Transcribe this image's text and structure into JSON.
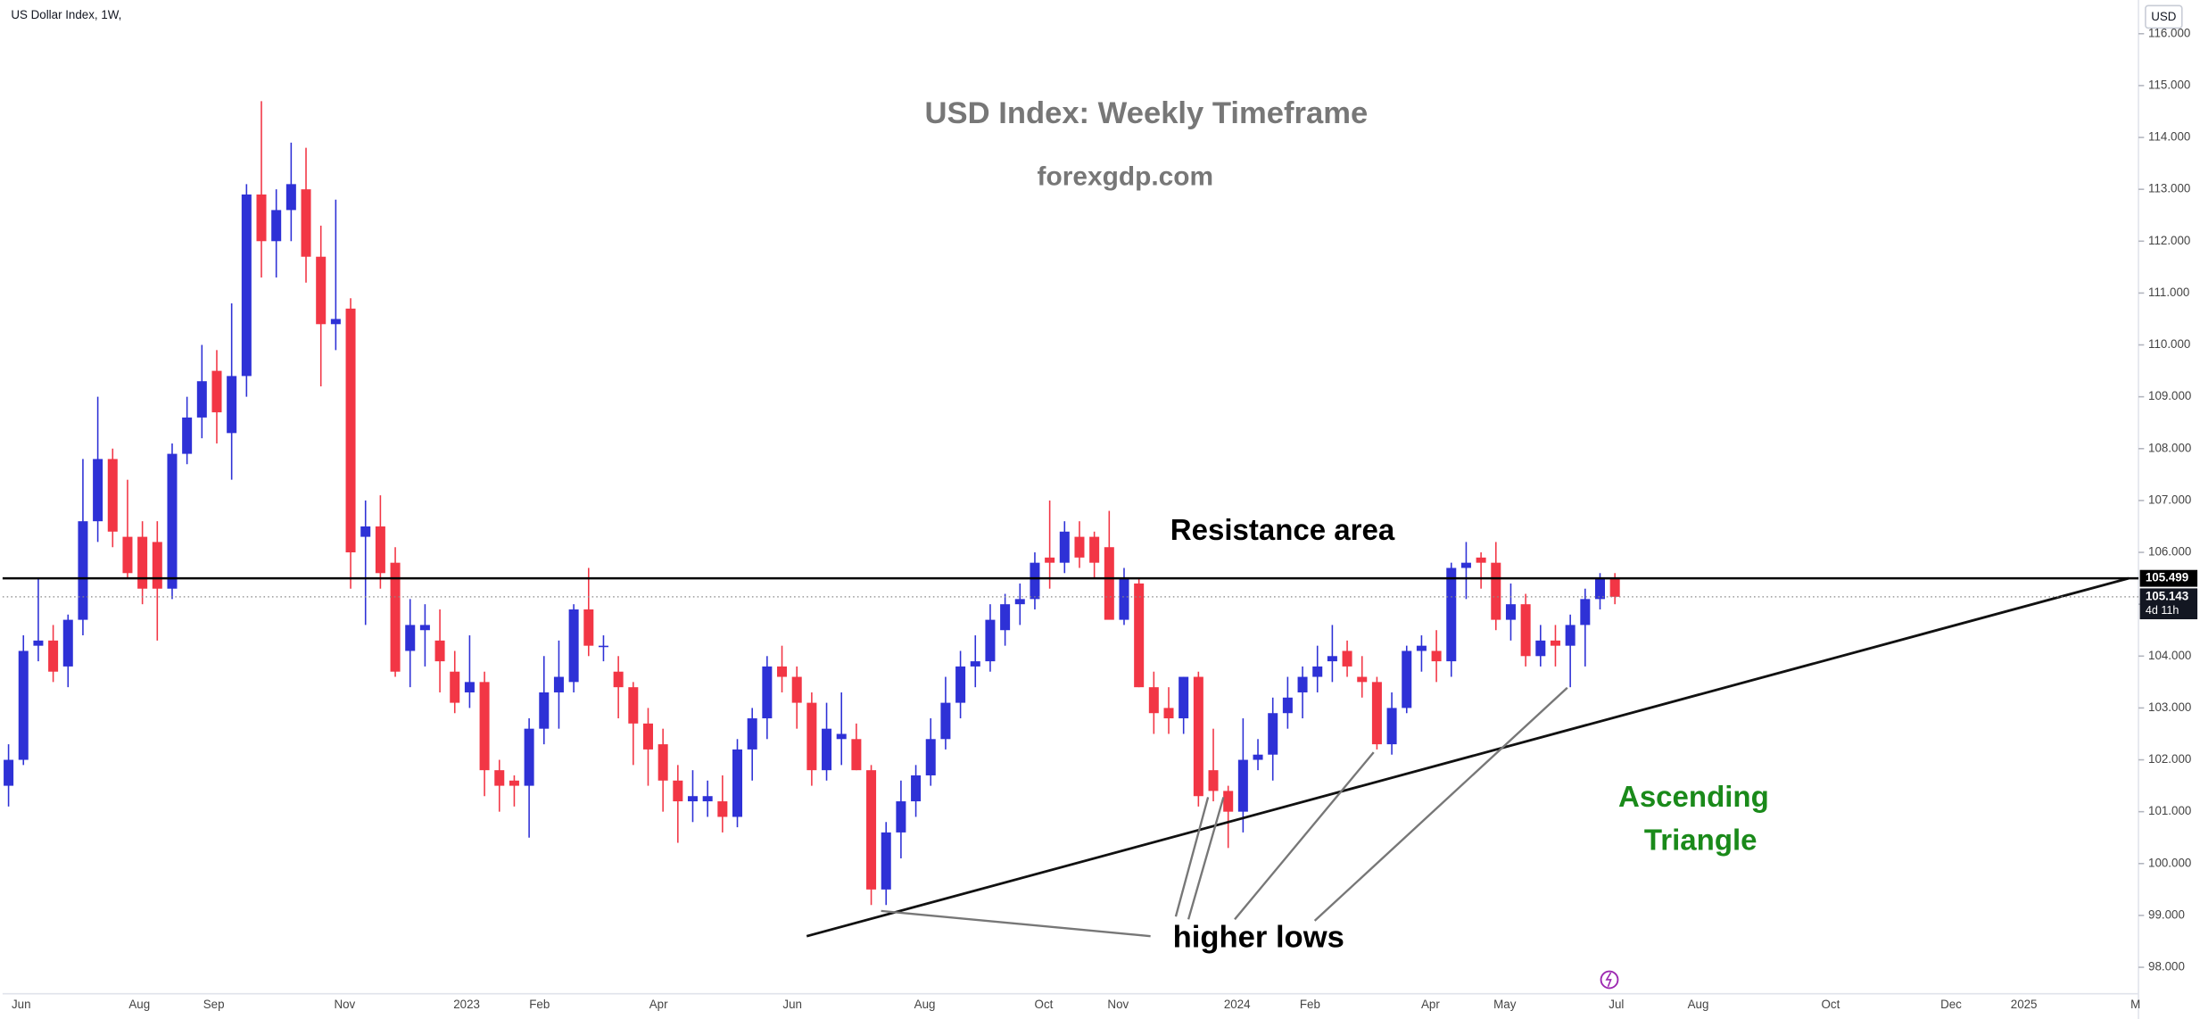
{
  "chart_data": {
    "type": "candlestick",
    "symbol": "US Dollar Index, 1W,",
    "currency": "USD",
    "title": "USD Index: Weekly Timeframe",
    "subtitle": "forexgdp.com",
    "annotations": {
      "resistance": "Resistance area",
      "pattern": [
        "Ascending",
        "Triangle"
      ],
      "lows": "higher lows"
    },
    "up_color": "#2e31d6",
    "down_color": "#f23645",
    "open": [
      101.5,
      102.0,
      104.2,
      104.3,
      103.8,
      104.7,
      106.6,
      107.8,
      106.3,
      106.3,
      106.2,
      105.3,
      107.9,
      108.6,
      109.5,
      108.3,
      109.4,
      112.9,
      112.0,
      112.6,
      113.0,
      111.7,
      110.4,
      110.7,
      106.3,
      106.5,
      105.8,
      104.1,
      104.5,
      104.3,
      103.7,
      103.3,
      103.5,
      101.8,
      101.6,
      101.5,
      102.6,
      103.3,
      103.5,
      104.9,
      104.2,
      103.7,
      103.4,
      102.7,
      102.3,
      101.6,
      101.2,
      101.2,
      101.2,
      100.9,
      102.2,
      102.8,
      103.8,
      103.6,
      103.1,
      101.8,
      102.4,
      102.4,
      101.8,
      99.5,
      100.6,
      101.2,
      101.7,
      102.4,
      103.1,
      103.8,
      103.9,
      104.5,
      105.0,
      105.1,
      105.9,
      105.8,
      106.3,
      106.3,
      106.1,
      104.7,
      105.4,
      103.4,
      103.0,
      102.8,
      103.6,
      101.8,
      101.4,
      101.0,
      102.0,
      102.1,
      102.9,
      103.3,
      103.6,
      103.9,
      104.1,
      103.6,
      103.5,
      102.3,
      103.0,
      104.1,
      104.1,
      103.9,
      105.7,
      105.9,
      105.8,
      104.7,
      105.0,
      104.0,
      104.3,
      104.2,
      104.6,
      105.1,
      105.5
    ],
    "high": [
      102.3,
      104.4,
      105.5,
      104.6,
      104.8,
      107.8,
      109.0,
      108.0,
      107.4,
      106.6,
      106.6,
      108.1,
      109.0,
      110.0,
      109.9,
      110.8,
      113.1,
      114.7,
      113.0,
      113.9,
      113.8,
      112.3,
      112.8,
      110.9,
      107.0,
      107.1,
      106.1,
      105.1,
      105.0,
      104.9,
      104.1,
      104.4,
      103.7,
      102.0,
      101.7,
      102.8,
      104.0,
      104.3,
      105.0,
      105.7,
      104.4,
      104.0,
      103.5,
      103.0,
      102.6,
      101.9,
      101.8,
      101.6,
      101.7,
      102.4,
      103.0,
      104.0,
      104.2,
      103.8,
      103.3,
      103.1,
      103.3,
      102.7,
      101.9,
      100.8,
      101.6,
      101.9,
      102.8,
      103.6,
      104.1,
      104.4,
      105.0,
      105.2,
      105.4,
      106.0,
      107.0,
      106.6,
      106.6,
      106.4,
      106.8,
      105.7,
      105.5,
      103.7,
      103.4,
      103.6,
      103.7,
      102.6,
      101.5,
      102.8,
      102.4,
      103.2,
      103.6,
      103.8,
      104.2,
      104.6,
      104.3,
      104.0,
      103.6,
      103.3,
      104.2,
      104.4,
      104.5,
      105.8,
      106.2,
      106.0,
      106.2,
      105.4,
      105.2,
      104.6,
      104.6,
      104.8,
      105.3,
      105.6,
      105.6
    ],
    "low": [
      101.1,
      101.9,
      103.9,
      103.5,
      103.4,
      104.4,
      106.2,
      106.1,
      105.5,
      105.0,
      104.3,
      105.1,
      107.7,
      108.2,
      108.1,
      107.4,
      109.0,
      111.3,
      111.3,
      112.0,
      111.2,
      109.2,
      109.9,
      105.3,
      104.6,
      105.3,
      103.6,
      103.4,
      103.8,
      103.3,
      102.9,
      103.0,
      101.3,
      101.0,
      101.1,
      100.5,
      102.3,
      102.6,
      103.3,
      104.0,
      103.9,
      102.8,
      101.9,
      101.5,
      101.0,
      100.4,
      100.8,
      100.9,
      100.6,
      100.7,
      101.6,
      102.4,
      103.3,
      102.6,
      101.5,
      101.6,
      101.9,
      101.8,
      99.2,
      99.2,
      100.1,
      100.9,
      101.5,
      102.2,
      102.8,
      103.4,
      103.7,
      104.2,
      104.6,
      104.9,
      105.3,
      105.6,
      105.7,
      105.5,
      104.8,
      104.6,
      103.4,
      102.5,
      102.5,
      102.5,
      101.1,
      101.2,
      100.3,
      100.6,
      101.8,
      101.6,
      102.6,
      102.8,
      103.3,
      103.5,
      103.6,
      103.2,
      102.2,
      102.1,
      102.9,
      103.7,
      103.5,
      103.6,
      105.1,
      105.3,
      104.5,
      104.3,
      103.8,
      103.8,
      103.8,
      103.4,
      103.8,
      104.9,
      105.0
    ],
    "close": [
      102.0,
      104.1,
      104.3,
      103.7,
      104.7,
      106.6,
      107.8,
      106.4,
      105.6,
      105.3,
      105.3,
      107.9,
      108.6,
      109.3,
      108.7,
      109.4,
      112.9,
      112.0,
      112.6,
      113.1,
      111.7,
      110.4,
      110.5,
      106.0,
      106.5,
      105.6,
      103.7,
      104.6,
      104.6,
      103.9,
      103.1,
      103.5,
      101.8,
      101.5,
      101.5,
      102.6,
      103.3,
      103.6,
      104.9,
      104.2,
      104.2,
      103.4,
      102.7,
      102.2,
      101.6,
      101.2,
      101.3,
      101.3,
      100.9,
      102.2,
      102.8,
      103.8,
      103.6,
      103.1,
      101.8,
      102.6,
      102.5,
      101.8,
      99.5,
      100.6,
      101.2,
      101.7,
      102.4,
      103.1,
      103.8,
      103.9,
      104.7,
      105.0,
      105.1,
      105.8,
      105.8,
      106.4,
      105.9,
      105.8,
      104.7,
      105.5,
      103.4,
      102.9,
      102.8,
      103.6,
      101.3,
      101.4,
      101.0,
      102.0,
      102.1,
      102.9,
      103.2,
      103.6,
      103.8,
      104.0,
      103.8,
      103.5,
      102.3,
      103.0,
      104.1,
      104.2,
      103.9,
      105.7,
      105.8,
      105.8,
      104.7,
      105.0,
      104.0,
      104.3,
      104.2,
      104.6,
      105.1,
      105.5,
      105.143
    ],
    "resistance_line": {
      "value": 105.499,
      "label": "105.499"
    },
    "last_price": {
      "value": 105.143,
      "label": "105.143",
      "countdown": "4d 11h"
    },
    "xlim": [
      -0.4,
      143.2
    ],
    "ylim": [
      97.49,
      116.65
    ],
    "yticks": [
      {
        "value": 98,
        "label": "98.000"
      },
      {
        "value": 99,
        "label": "99.000"
      },
      {
        "value": 100,
        "label": "100.000"
      },
      {
        "value": 101,
        "label": "101.000"
      },
      {
        "value": 102,
        "label": "102.000"
      },
      {
        "value": 103,
        "label": "103.000"
      },
      {
        "value": 104,
        "label": "104.000"
      },
      {
        "value": 105,
        "label": "105.000"
      },
      {
        "value": 106,
        "label": "106.000"
      },
      {
        "value": 107,
        "label": "107.000"
      },
      {
        "value": 108,
        "label": "108.000"
      },
      {
        "value": 109,
        "label": "109.000"
      },
      {
        "value": 110,
        "label": "110.000"
      },
      {
        "value": 111,
        "label": "111.000"
      },
      {
        "value": 112,
        "label": "112.000"
      },
      {
        "value": 113,
        "label": "113.000"
      },
      {
        "value": 114,
        "label": "114.000"
      },
      {
        "value": 115,
        "label": "115.000"
      },
      {
        "value": 116,
        "label": "116.000"
      }
    ],
    "xticks": [
      {
        "value": 0.85,
        "label": "Jun"
      },
      {
        "value": 8.8,
        "label": "Aug"
      },
      {
        "value": 13.8,
        "label": "Sep"
      },
      {
        "value": 22.6,
        "label": "Nov"
      },
      {
        "value": 30.8,
        "label": "2023"
      },
      {
        "value": 35.7,
        "label": "Feb"
      },
      {
        "value": 43.7,
        "label": "Apr"
      },
      {
        "value": 52.7,
        "label": "Jun"
      },
      {
        "value": 61.6,
        "label": "Aug"
      },
      {
        "value": 69.6,
        "label": "Oct"
      },
      {
        "value": 74.6,
        "label": "Nov"
      },
      {
        "value": 82.6,
        "label": "2024"
      },
      {
        "value": 87.5,
        "label": "Feb"
      },
      {
        "value": 95.6,
        "label": "Apr"
      },
      {
        "value": 100.6,
        "label": "May"
      },
      {
        "value": 108.1,
        "label": "Jul"
      },
      {
        "value": 113.6,
        "label": "Aug"
      },
      {
        "value": 122.5,
        "label": "Oct"
      },
      {
        "value": 130.6,
        "label": "Dec"
      },
      {
        "value": 135.5,
        "label": "2025"
      },
      {
        "value": 143.0,
        "label": "M"
      }
    ]
  }
}
